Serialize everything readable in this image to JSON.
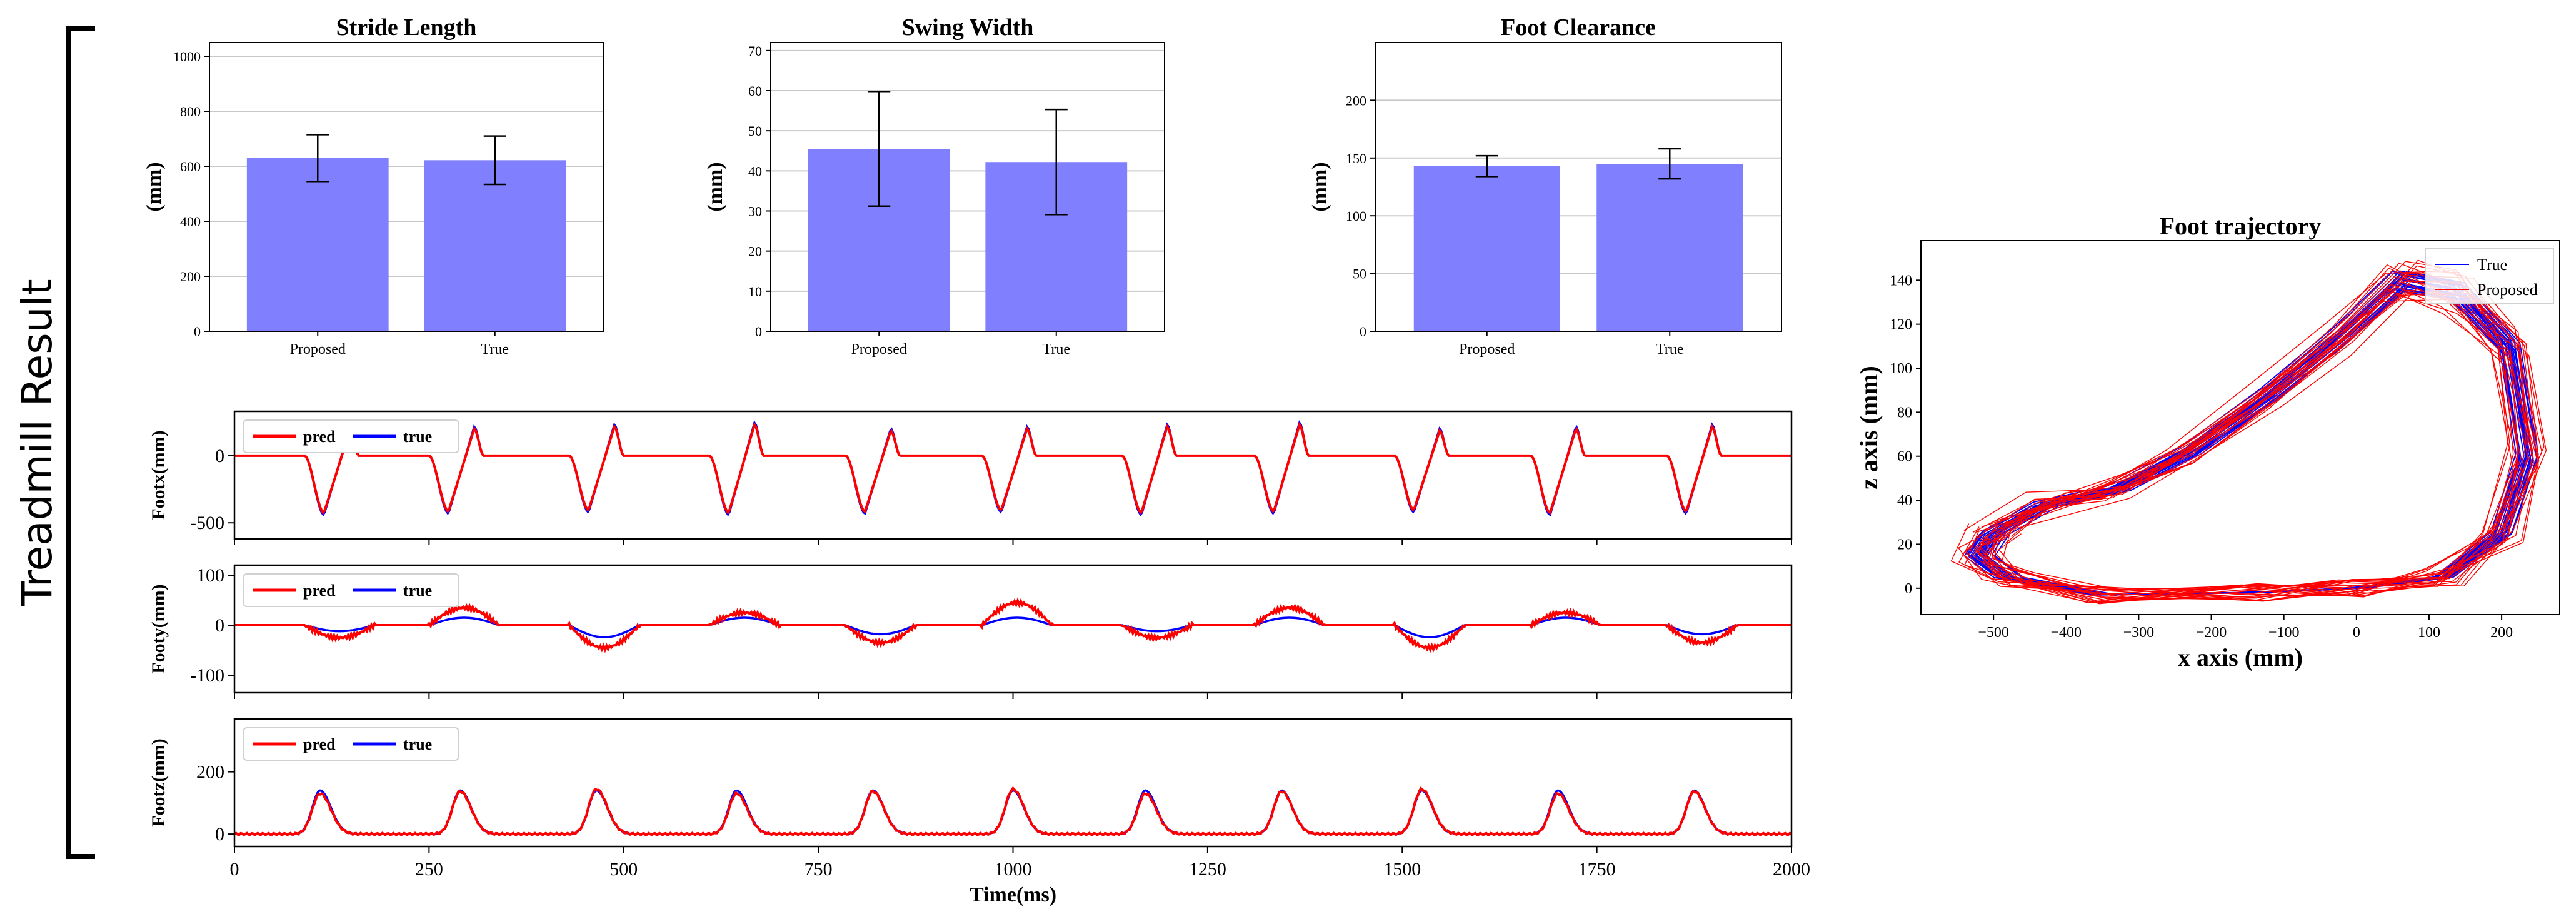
{
  "figure": {
    "side_label": "Treadmill Result"
  },
  "chart_data": [
    {
      "id": "stride",
      "type": "bar",
      "title": "Stride Length",
      "ylabel": "(mm)",
      "xlabel": "",
      "categories": [
        "Proposed",
        "True"
      ],
      "values": [
        630,
        622
      ],
      "errors": [
        85,
        88
      ],
      "ylim": [
        0,
        1050
      ],
      "yticks": [
        0,
        200,
        400,
        600,
        800,
        1000
      ],
      "grid": true,
      "color": "#8080FF"
    },
    {
      "id": "swing",
      "type": "bar",
      "title": "Swing Width",
      "ylabel": "(mm)",
      "xlabel": "",
      "categories": [
        "Proposed",
        "True"
      ],
      "values": [
        45.5,
        42.2
      ],
      "errors": [
        14.3,
        13.1
      ],
      "ylim": [
        0,
        72
      ],
      "yticks": [
        0,
        10,
        20,
        30,
        40,
        50,
        60,
        70
      ],
      "grid": true,
      "color": "#8080FF"
    },
    {
      "id": "clearance",
      "type": "bar",
      "title": "Foot Clearance",
      "ylabel": "(mm)",
      "xlabel": "",
      "categories": [
        "Proposed",
        "True"
      ],
      "values": [
        143,
        145
      ],
      "errors": [
        9,
        13
      ],
      "ylim": [
        0,
        250
      ],
      "yticks": [
        0,
        50,
        100,
        150,
        200
      ],
      "grid": true,
      "color": "#8080FF"
    },
    {
      "id": "footx",
      "type": "line",
      "ylabel": "Footx(mm)",
      "xlim": [
        0,
        2000
      ],
      "ylim": [
        -620,
        330
      ],
      "yticks": [
        -500,
        0
      ],
      "xticks": [
        0,
        250,
        500,
        750,
        1000,
        1250,
        1500,
        1750,
        2000
      ],
      "show_xticklabels": false,
      "legend": "top-left",
      "cycle_starts": [
        90,
        250,
        430,
        610,
        785,
        960,
        1140,
        1310,
        1490,
        1665,
        1840
      ],
      "series": [
        {
          "name": "pred",
          "color": "#FF0000"
        },
        {
          "name": "true",
          "color": "#0000FF"
        }
      ]
    },
    {
      "id": "footy",
      "type": "line",
      "ylabel": "Footy(mm)",
      "xlim": [
        0,
        2000
      ],
      "ylim": [
        -135,
        120
      ],
      "yticks": [
        -100,
        0,
        100
      ],
      "xticks": [
        0,
        250,
        500,
        750,
        1000,
        1250,
        1500,
        1750,
        2000
      ],
      "show_xticklabels": false,
      "legend": "top-left",
      "cycle_starts": [
        90,
        250,
        430,
        610,
        785,
        960,
        1140,
        1310,
        1490,
        1665,
        1840
      ],
      "series": [
        {
          "name": "pred",
          "color": "#FF0000"
        },
        {
          "name": "true",
          "color": "#0000FF"
        }
      ]
    },
    {
      "id": "footz",
      "type": "line",
      "ylabel": "Footz(mm)",
      "xlabel": "Time(ms)",
      "xlim": [
        0,
        2000
      ],
      "ylim": [
        -40,
        370
      ],
      "yticks": [
        0,
        200
      ],
      "xticks": [
        0,
        250,
        500,
        750,
        1000,
        1250,
        1500,
        1750,
        2000
      ],
      "show_xticklabels": true,
      "legend": "top-left",
      "peaks": [
        110,
        290,
        465,
        645,
        820,
        1000,
        1170,
        1345,
        1525,
        1700,
        1875
      ],
      "peak_height": 140,
      "series": [
        {
          "name": "pred",
          "color": "#FF0000"
        },
        {
          "name": "true",
          "color": "#0000FF"
        }
      ]
    },
    {
      "id": "trajectory",
      "type": "line",
      "title": "Foot trajectory",
      "xlabel": "x axis (mm)",
      "ylabel": "z axis (mm)",
      "xlim": [
        -600,
        280
      ],
      "ylim": [
        -12,
        158
      ],
      "xticks": [
        -500,
        -400,
        -300,
        -200,
        -100,
        0,
        100,
        200
      ],
      "yticks": [
        0,
        20,
        40,
        60,
        80,
        100,
        120,
        140
      ],
      "legend": "top-right",
      "series": [
        {
          "name": "True",
          "color": "#0000FF"
        },
        {
          "name": "Proposed",
          "color": "#FF0000"
        }
      ]
    }
  ]
}
